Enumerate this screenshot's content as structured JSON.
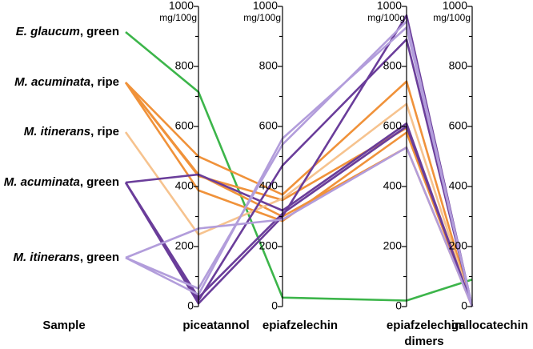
{
  "chart_data": {
    "type": "parallel",
    "sample_axis_label": "Sample",
    "samples": [
      {
        "species": "E. glaucum",
        "rest": ", green"
      },
      {
        "species": "M. acuminata",
        "rest": ", ripe"
      },
      {
        "species": "M. itinerans",
        "rest": ", ripe"
      },
      {
        "species": "M. acuminata",
        "rest": ", green"
      },
      {
        "species": "M. itinerans",
        "rest": ", green"
      }
    ],
    "dimensions": [
      "piceatannol",
      "epiafzelechin",
      "epiafzelechin dimers",
      "gallocatechin"
    ],
    "unit": "mg/100g",
    "ylim": [
      0,
      1000
    ],
    "yticks": [
      0,
      200,
      400,
      600,
      800,
      1000
    ],
    "minor_yticks": [
      100,
      300,
      500,
      700,
      900
    ],
    "series": [
      {
        "sample": 0,
        "color": "#3cb54a",
        "values": [
          715,
          30,
          20,
          90
        ]
      },
      {
        "sample": 1,
        "color": "#f0923a",
        "values": [
          500,
          373,
          750,
          0
        ]
      },
      {
        "sample": 1,
        "color": "#f0923a",
        "values": [
          435,
          355,
          595,
          0
        ]
      },
      {
        "sample": 1,
        "color": "#f0923a",
        "values": [
          387,
          285,
          580,
          0
        ]
      },
      {
        "sample": 1,
        "color": "#f0923a",
        "values": [
          440,
          300,
          530,
          0
        ]
      },
      {
        "sample": 2,
        "color": "#f6c38f",
        "values": [
          240,
          360,
          675,
          0
        ]
      },
      {
        "sample": 3,
        "color": "#6a3d9a",
        "values": [
          440,
          320,
          610,
          0
        ]
      },
      {
        "sample": 3,
        "color": "#6a3d9a",
        "values": [
          20,
          470,
          890,
          0
        ]
      },
      {
        "sample": 3,
        "color": "#6a3d9a",
        "values": [
          10,
          300,
          970,
          0
        ]
      },
      {
        "sample": 3,
        "color": "#6a3d9a",
        "values": [
          30,
          310,
          600,
          0
        ]
      },
      {
        "sample": 4,
        "color": "#b29ddb",
        "values": [
          260,
          290,
          530,
          0
        ]
      },
      {
        "sample": 4,
        "color": "#b29ddb",
        "values": [
          60,
          540,
          950,
          0
        ]
      },
      {
        "sample": 4,
        "color": "#b29ddb",
        "values": [
          40,
          560,
          930,
          0
        ]
      }
    ]
  }
}
